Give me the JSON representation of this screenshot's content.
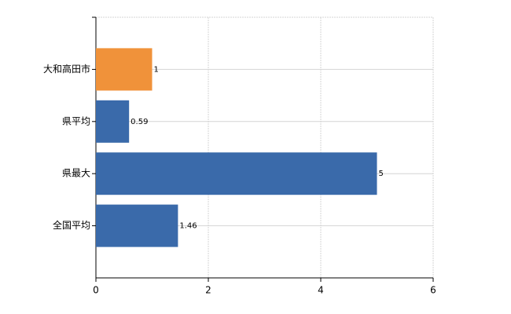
{
  "chart_data": {
    "type": "bar",
    "orientation": "horizontal",
    "categories": [
      "大和高田市",
      "県平均",
      "県最大",
      "全国平均"
    ],
    "values": [
      1,
      0.59,
      5,
      1.46
    ],
    "colors": [
      "#f0923a",
      "#3a6aaa",
      "#3a6aaa",
      "#3a6aaa"
    ],
    "xlim": [
      0,
      6
    ],
    "xticks": [
      0,
      2,
      4,
      6
    ],
    "grid": true
  }
}
